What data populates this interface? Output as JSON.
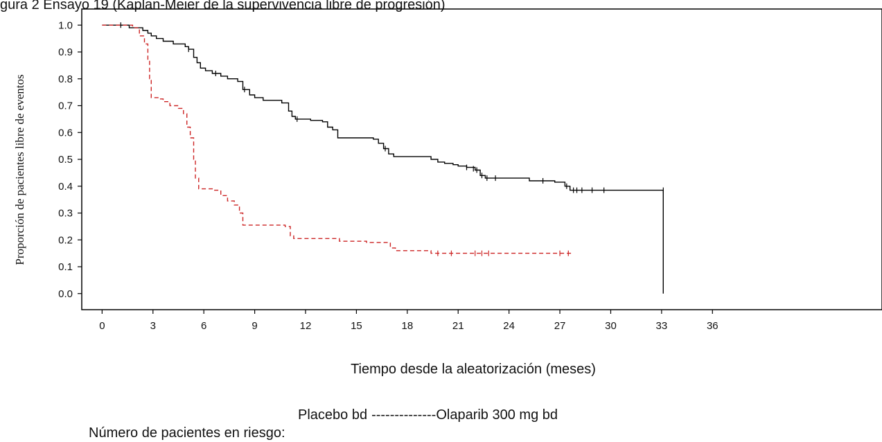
{
  "header": {
    "caption": "gura 2 Ensayo 19 (Kaplan-Meier de la supervivencia libre de progresión)"
  },
  "chart_data": {
    "type": "line",
    "title": "",
    "xlabel": "Tiempo desde la aleatorización (meses)",
    "ylabel": "Proporción de pacientes libre de eventos",
    "xlim": [
      -1.2,
      46
    ],
    "ylim": [
      -0.06,
      1.06
    ],
    "x_ticks": [
      0,
      3,
      6,
      9,
      12,
      15,
      18,
      21,
      24,
      27,
      30,
      33,
      36
    ],
    "y_ticks": [
      0.0,
      0.1,
      0.2,
      0.3,
      0.4,
      0.5,
      0.6,
      0.7,
      0.8,
      0.9,
      1.0
    ],
    "grid": false,
    "series": [
      {
        "name": "Olaparib 300 mg bd",
        "color": "#000000",
        "style": "solid",
        "points": [
          [
            0,
            1.0
          ],
          [
            1.3,
            1.0
          ],
          [
            1.6,
            0.99
          ],
          [
            2.1,
            0.99
          ],
          [
            2.4,
            0.98
          ],
          [
            2.7,
            0.97
          ],
          [
            2.9,
            0.96
          ],
          [
            3.2,
            0.95
          ],
          [
            3.6,
            0.94
          ],
          [
            4.2,
            0.93
          ],
          [
            4.9,
            0.92
          ],
          [
            5.1,
            0.91
          ],
          [
            5.4,
            0.88
          ],
          [
            5.6,
            0.86
          ],
          [
            5.8,
            0.84
          ],
          [
            6.1,
            0.83
          ],
          [
            6.5,
            0.82
          ],
          [
            7.0,
            0.81
          ],
          [
            7.4,
            0.8
          ],
          [
            8.0,
            0.79
          ],
          [
            8.3,
            0.76
          ],
          [
            8.7,
            0.74
          ],
          [
            9.0,
            0.73
          ],
          [
            9.5,
            0.72
          ],
          [
            10.6,
            0.71
          ],
          [
            11.0,
            0.68
          ],
          [
            11.2,
            0.66
          ],
          [
            11.4,
            0.65
          ],
          [
            12.3,
            0.645
          ],
          [
            13.0,
            0.64
          ],
          [
            13.3,
            0.62
          ],
          [
            13.6,
            0.61
          ],
          [
            13.9,
            0.58
          ],
          [
            16.0,
            0.575
          ],
          [
            16.3,
            0.56
          ],
          [
            16.6,
            0.54
          ],
          [
            16.9,
            0.52
          ],
          [
            17.2,
            0.51
          ],
          [
            19.0,
            0.51
          ],
          [
            19.4,
            0.5
          ],
          [
            19.8,
            0.49
          ],
          [
            20.2,
            0.485
          ],
          [
            20.7,
            0.48
          ],
          [
            21.0,
            0.475
          ],
          [
            21.5,
            0.47
          ],
          [
            22.0,
            0.46
          ],
          [
            22.3,
            0.44
          ],
          [
            22.6,
            0.43
          ],
          [
            25.2,
            0.42
          ],
          [
            26.7,
            0.415
          ],
          [
            27.3,
            0.4
          ],
          [
            27.6,
            0.385
          ],
          [
            33.1,
            0.385
          ],
          [
            33.1,
            0.0
          ]
        ]
      },
      {
        "name": "Placebo bd",
        "color": "#cc2222",
        "style": "dashed",
        "points": [
          [
            0,
            1.0
          ],
          [
            1.4,
            1.0
          ],
          [
            1.8,
            0.99
          ],
          [
            2.2,
            0.96
          ],
          [
            2.5,
            0.93
          ],
          [
            2.7,
            0.87
          ],
          [
            2.8,
            0.8
          ],
          [
            2.9,
            0.73
          ],
          [
            3.3,
            0.725
          ],
          [
            3.6,
            0.715
          ],
          [
            4.0,
            0.7
          ],
          [
            4.5,
            0.69
          ],
          [
            4.8,
            0.67
          ],
          [
            5.0,
            0.62
          ],
          [
            5.2,
            0.58
          ],
          [
            5.4,
            0.5
          ],
          [
            5.5,
            0.43
          ],
          [
            5.7,
            0.39
          ],
          [
            6.3,
            0.39
          ],
          [
            6.6,
            0.385
          ],
          [
            7.0,
            0.365
          ],
          [
            7.4,
            0.345
          ],
          [
            7.8,
            0.33
          ],
          [
            8.1,
            0.3
          ],
          [
            8.3,
            0.255
          ],
          [
            10.8,
            0.25
          ],
          [
            11.1,
            0.215
          ],
          [
            11.3,
            0.205
          ],
          [
            14.0,
            0.195
          ],
          [
            15.6,
            0.19
          ],
          [
            17.0,
            0.17
          ],
          [
            17.3,
            0.16
          ],
          [
            19.4,
            0.15
          ],
          [
            27.7,
            0.15
          ]
        ]
      }
    ],
    "censor_marks": [
      {
        "series": 0,
        "points": [
          [
            1.1,
            1.0
          ],
          [
            5.1,
            0.91
          ],
          [
            6.7,
            0.82
          ],
          [
            8.4,
            0.76
          ],
          [
            11.5,
            0.65
          ],
          [
            16.7,
            0.54
          ],
          [
            21.5,
            0.47
          ],
          [
            21.9,
            0.465
          ],
          [
            22.1,
            0.46
          ],
          [
            22.4,
            0.44
          ],
          [
            22.7,
            0.43
          ],
          [
            23.2,
            0.43
          ],
          [
            26.0,
            0.42
          ],
          [
            27.4,
            0.4
          ],
          [
            27.8,
            0.385
          ],
          [
            28.0,
            0.385
          ],
          [
            28.3,
            0.385
          ],
          [
            28.9,
            0.385
          ],
          [
            29.6,
            0.385
          ],
          [
            33.1,
            0.385
          ]
        ]
      },
      {
        "series": 1,
        "points": [
          [
            19.8,
            0.15
          ],
          [
            20.6,
            0.15
          ],
          [
            22.0,
            0.15
          ],
          [
            22.4,
            0.15
          ],
          [
            22.8,
            0.15
          ],
          [
            27.0,
            0.15
          ],
          [
            27.5,
            0.15
          ]
        ]
      }
    ],
    "legend": {
      "prefix": "Placebo bd",
      "dashes": "--------------",
      "suffix": "Olaparib 300 mg bd"
    },
    "at_risk_label": "Número de pacientes en riesgo:"
  }
}
